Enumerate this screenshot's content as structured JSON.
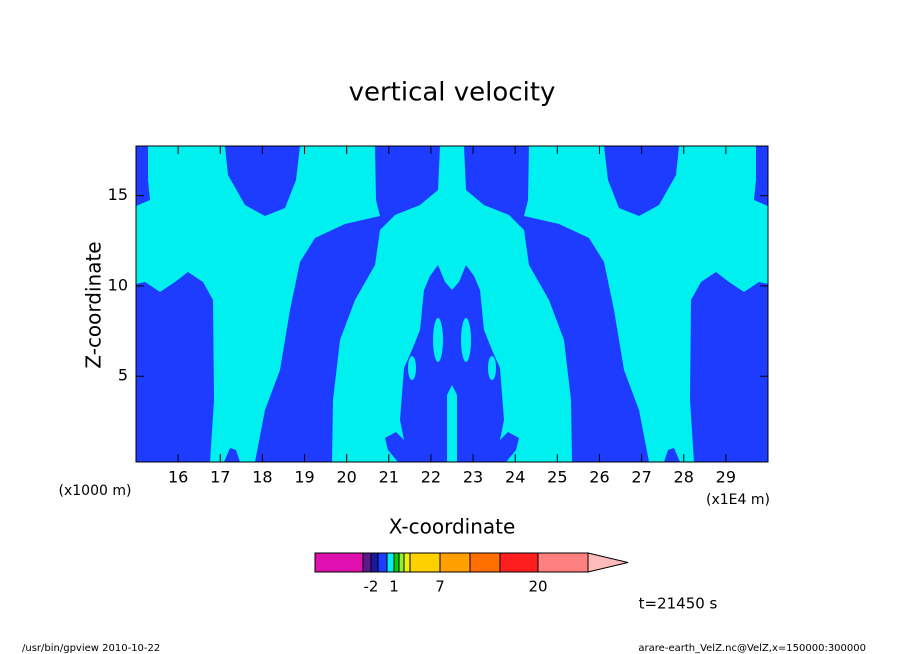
{
  "chart_data": {
    "type": "contour",
    "title": "vertical velocity",
    "x_label": "X-coordinate",
    "y_label": "Z-coordinate",
    "x_unit": "(x1E4 m)",
    "y_unit": "(x1000 m)",
    "xlim": [
      15,
      30
    ],
    "ylim": [
      0.25,
      17.75
    ],
    "xticks": [
      16,
      17,
      18,
      19,
      20,
      21,
      22,
      23,
      24,
      25,
      26,
      27,
      28,
      29
    ],
    "yticks": [
      5,
      10,
      15
    ],
    "colorbar": {
      "levels": [
        -5,
        -2,
        -1,
        0,
        1,
        2,
        3,
        5,
        7,
        10,
        15,
        20,
        30
      ],
      "colors": [
        "#e010b0",
        "#5a1a8c",
        "#1a1aa0",
        "#1e3cff",
        "#00f0f0",
        "#00d000",
        "#90f030",
        "#f0f000",
        "#ffd000",
        "#ffa000",
        "#ff6e00",
        "#ff1e1e",
        "#ff8080",
        "#ffbaba"
      ],
      "ticks": [
        -2,
        1,
        7,
        20
      ]
    },
    "time_label": "t=21450 s"
  },
  "footer": {
    "left": "/usr/bin/gpview   2010-10-22",
    "right": "arare-earth_VelZ.nc@VelZ,x=150000:300000"
  }
}
